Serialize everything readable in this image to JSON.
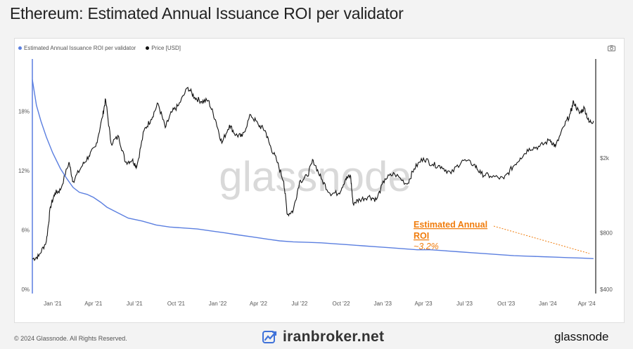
{
  "page": {
    "title": "Ethereum: Estimated Annual Issuance ROI per validator",
    "copyright": "© 2024 Glassnode. All Rights Reserved.",
    "brand": "iranbroker.net",
    "logo_text": "glassnode",
    "watermark": "glassnode",
    "camera_icon": "camera-icon"
  },
  "colors": {
    "roi": "#5b7fe0",
    "price": "#111111",
    "annotation": "#f07c0c"
  },
  "chart_data": {
    "type": "line",
    "legend": [
      "Estimated Annual Issuance ROI per validator",
      "Price [USD]"
    ],
    "legend_position": "top-left",
    "x_ticks": [
      "Jan '21",
      "Apr '21",
      "Jul '21",
      "Oct '21",
      "Jan '22",
      "Apr '22",
      "Jul '22",
      "Oct '22",
      "Jan '23",
      "Apr '23",
      "Jul '23",
      "Oct '23",
      "Jan '24",
      "Apr '24"
    ],
    "x_range": [
      "2020-12-01",
      "2024-04-30"
    ],
    "y_left": {
      "ticks": [
        "0%",
        "6%",
        "12%",
        "18%"
      ],
      "tick_values": [
        0,
        6,
        12,
        18
      ],
      "range": [
        0,
        23
      ]
    },
    "y_right": {
      "ticks": [
        "$400",
        "$800",
        "$2k"
      ],
      "tick_values": [
        400,
        800,
        2000
      ],
      "scale": "log",
      "range": [
        400,
        6500
      ]
    },
    "grid": false,
    "annotation": {
      "line1": "Estimated Annual",
      "line2": "ROI",
      "value": "~3.2%"
    },
    "series": [
      {
        "name": "Estimated Annual Issuance ROI per validator",
        "axis": "left",
        "x": [
          "2020-12-01",
          "2020-12-10",
          "2020-12-20",
          "2021-01-01",
          "2021-01-15",
          "2021-02-01",
          "2021-02-15",
          "2021-03-01",
          "2021-03-15",
          "2021-04-01",
          "2021-04-15",
          "2021-05-01",
          "2021-05-15",
          "2021-06-01",
          "2021-07-01",
          "2021-08-01",
          "2021-09-01",
          "2021-10-01",
          "2021-11-01",
          "2021-12-01",
          "2022-01-01",
          "2022-02-01",
          "2022-03-01",
          "2022-04-01",
          "2022-05-01",
          "2022-06-01",
          "2022-07-01",
          "2022-08-01",
          "2022-09-01",
          "2022-10-01",
          "2022-11-01",
          "2022-12-01",
          "2023-01-01",
          "2023-02-01",
          "2023-03-01",
          "2023-04-01",
          "2023-05-01",
          "2023-06-01",
          "2023-07-01",
          "2023-08-01",
          "2023-09-01",
          "2023-10-01",
          "2023-11-01",
          "2023-12-01",
          "2024-01-01",
          "2024-02-01",
          "2024-03-01",
          "2024-04-01",
          "2024-04-25"
        ],
        "values": [
          21.2,
          18.6,
          17.0,
          15.4,
          13.8,
          12.2,
          11.2,
          10.3,
          9.8,
          9.6,
          9.3,
          8.8,
          8.3,
          7.9,
          7.2,
          6.9,
          6.5,
          6.3,
          6.2,
          6.1,
          5.9,
          5.7,
          5.5,
          5.3,
          5.1,
          4.9,
          4.8,
          4.75,
          4.7,
          4.6,
          4.5,
          4.4,
          4.3,
          4.2,
          4.1,
          4.0,
          4.0,
          3.9,
          3.8,
          3.7,
          3.6,
          3.5,
          3.4,
          3.35,
          3.3,
          3.25,
          3.2,
          3.15,
          3.1
        ]
      },
      {
        "name": "Price [USD]",
        "axis": "right",
        "x": [
          "2020-12-01",
          "2020-12-15",
          "2021-01-01",
          "2021-01-10",
          "2021-01-20",
          "2021-02-01",
          "2021-02-20",
          "2021-03-01",
          "2021-03-20",
          "2021-04-05",
          "2021-04-20",
          "2021-05-05",
          "2021-05-12",
          "2021-05-24",
          "2021-06-10",
          "2021-06-25",
          "2021-07-10",
          "2021-07-20",
          "2021-08-05",
          "2021-08-20",
          "2021-09-05",
          "2021-09-21",
          "2021-10-05",
          "2021-10-20",
          "2021-11-10",
          "2021-11-25",
          "2021-12-10",
          "2021-12-25",
          "2022-01-10",
          "2022-01-24",
          "2022-02-10",
          "2022-02-24",
          "2022-03-10",
          "2022-03-29",
          "2022-04-15",
          "2022-04-30",
          "2022-05-10",
          "2022-05-25",
          "2022-06-10",
          "2022-06-18",
          "2022-07-01",
          "2022-07-15",
          "2022-08-01",
          "2022-08-14",
          "2022-09-01",
          "2022-09-20",
          "2022-10-10",
          "2022-10-25",
          "2022-11-05",
          "2022-11-10",
          "2022-11-25",
          "2022-12-15",
          "2023-01-01",
          "2023-01-20",
          "2023-02-10",
          "2023-03-10",
          "2023-03-25",
          "2023-04-15",
          "2023-05-05",
          "2023-05-25",
          "2023-06-15",
          "2023-07-10",
          "2023-08-05",
          "2023-08-20",
          "2023-09-10",
          "2023-10-10",
          "2023-10-30",
          "2023-11-15",
          "2023-12-05",
          "2023-12-28",
          "2024-01-20",
          "2024-02-01",
          "2024-02-20",
          "2024-03-05",
          "2024-03-12",
          "2024-03-25",
          "2024-04-05",
          "2024-04-15",
          "2024-04-25"
        ],
        "values": [
          580,
          600,
          720,
          1100,
          1300,
          1350,
          1900,
          1500,
          1800,
          2050,
          2300,
          3300,
          4100,
          2400,
          2600,
          1900,
          1950,
          1800,
          2800,
          3200,
          3900,
          2900,
          3500,
          3800,
          4750,
          4200,
          4000,
          4050,
          3200,
          2400,
          3000,
          2650,
          2600,
          3400,
          3000,
          2800,
          2350,
          1950,
          1500,
          1000,
          1050,
          1500,
          1600,
          1950,
          1550,
          1300,
          1300,
          1550,
          1600,
          1150,
          1200,
          1250,
          1200,
          1550,
          1650,
          1450,
          1750,
          2000,
          1850,
          1800,
          1650,
          1950,
          1850,
          1650,
          1600,
          1550,
          1800,
          2000,
          2250,
          2300,
          2500,
          2300,
          2950,
          3450,
          4000,
          3450,
          3700,
          3100,
          3150
        ]
      }
    ]
  }
}
